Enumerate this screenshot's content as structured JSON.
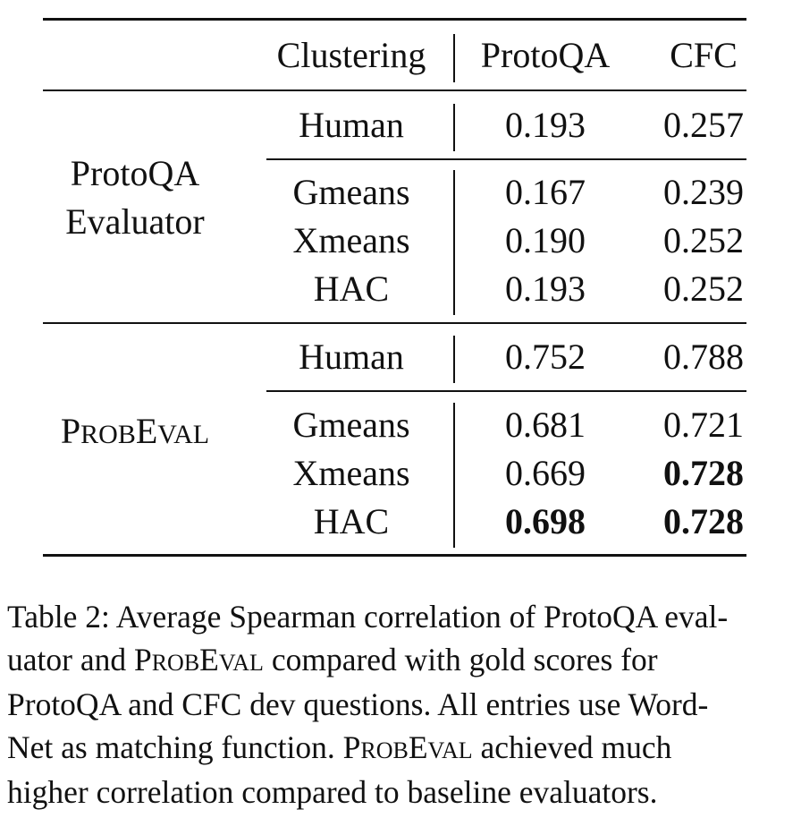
{
  "table": {
    "header": {
      "clustering": "Clustering",
      "protoqa": "ProtoQA",
      "cfc": "CFC"
    },
    "groups": [
      {
        "label_line1": "ProtoQA",
        "label_line2": "Evaluator",
        "rows": [
          {
            "method": "Human",
            "protoqa": "0.193",
            "cfc": "0.257"
          },
          {
            "method": "Gmeans",
            "protoqa": "0.167",
            "cfc": "0.239"
          },
          {
            "method": "Xmeans",
            "protoqa": "0.190",
            "cfc": "0.252"
          },
          {
            "method": "HAC",
            "protoqa": "0.193",
            "cfc": "0.252"
          }
        ]
      },
      {
        "label_p": "P",
        "label_rob": "ROB",
        "label_e": "E",
        "label_val": "VAL",
        "rows": [
          {
            "method": "Human",
            "protoqa": "0.752",
            "cfc": "0.788"
          },
          {
            "method": "Gmeans",
            "protoqa": "0.681",
            "cfc": "0.721"
          },
          {
            "method": "Xmeans",
            "protoqa": "0.669",
            "cfc": "0.728"
          },
          {
            "method": "HAC",
            "protoqa": "0.698",
            "cfc": "0.728"
          }
        ]
      }
    ]
  },
  "caption": {
    "l1": "Table 2: Average Spearman correlation of ProtoQA eval-",
    "l2a": "uator and ",
    "l2b": " compared with gold scores for",
    "l3": "ProtoQA and CFC dev questions. All entries use Word-",
    "l4a": "Net as matching function. ",
    "l4b": " achieved much",
    "l5": "higher correlation compared to baseline evaluators.",
    "sc_p": "P",
    "sc_rob": "ROB",
    "sc_e": "E",
    "sc_val": "VAL"
  }
}
